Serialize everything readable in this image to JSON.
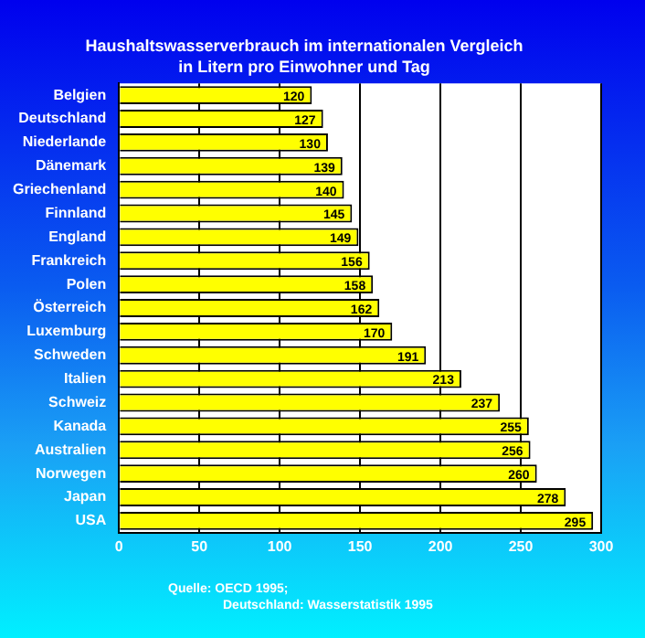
{
  "chart_data": {
    "type": "bar",
    "orientation": "horizontal",
    "title": "Haushaltswasserverbrauch im internationalen Vergleich",
    "subtitle": "in Litern pro Einwohner und Tag",
    "categories": [
      "Belgien",
      "Deutschland",
      "Niederlande",
      "Dänemark",
      "Griechenland",
      "Finnland",
      "England",
      "Frankreich",
      "Polen",
      "Österreich",
      "Luxemburg",
      "Schweden",
      "Italien",
      "Schweiz",
      "Kanada",
      "Australien",
      "Norwegen",
      "Japan",
      "USA"
    ],
    "values": [
      120,
      127,
      130,
      139,
      140,
      145,
      149,
      156,
      158,
      162,
      170,
      191,
      213,
      237,
      255,
      256,
      260,
      278,
      295
    ],
    "color": "#ffff00",
    "xlim": [
      0,
      300
    ],
    "xticks": [
      0,
      50,
      100,
      150,
      200,
      250,
      300
    ],
    "grid": "x",
    "data_labels": true,
    "legend": false,
    "annotations": [
      "Quelle: OECD 1995;",
      "Deutschland: Wasserstatistik 1995"
    ]
  }
}
